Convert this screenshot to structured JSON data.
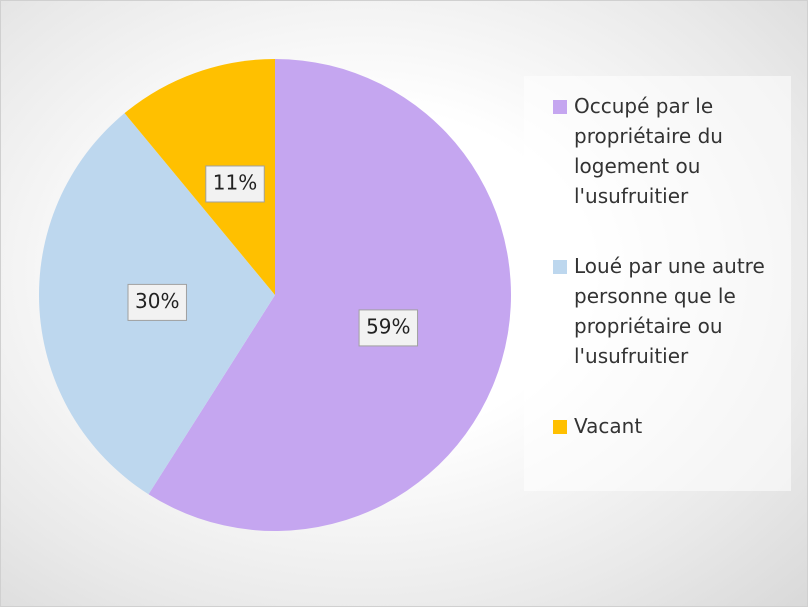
{
  "chart_data": {
    "type": "pie",
    "categories": [
      "Occupé par le propriétaire du logement ou l'usufruitier",
      "Loué par une autre personne que le propriétaire ou l'usufruitier",
      "Vacant"
    ],
    "values": [
      59,
      30,
      11
    ],
    "value_labels": [
      "59%",
      "30%",
      "11%"
    ],
    "colors": [
      "#c5a6f0",
      "#bdd7ee",
      "#ffc000"
    ],
    "legend": "right"
  }
}
